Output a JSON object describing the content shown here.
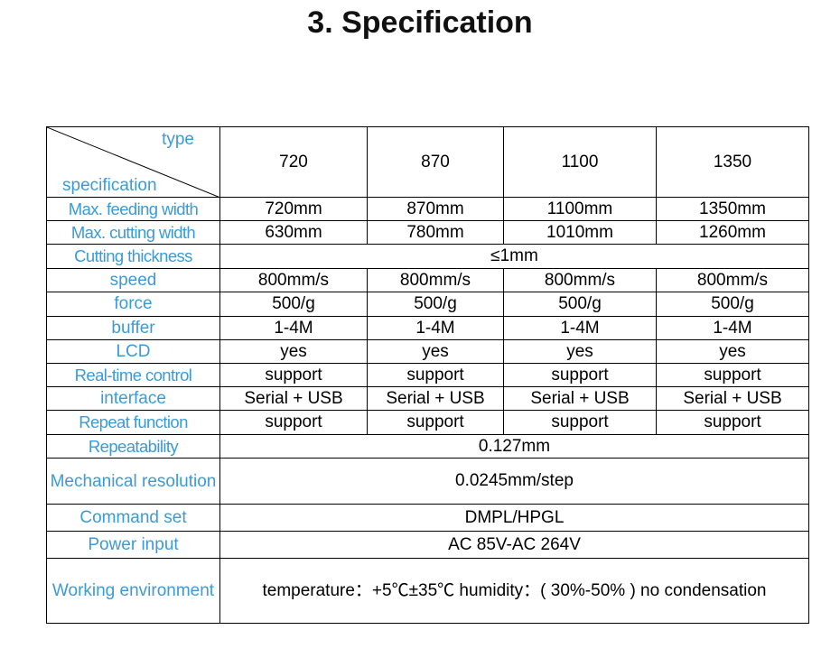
{
  "title": "3. Specification",
  "header": {
    "type_label": "type",
    "spec_label": "specification",
    "models": [
      "720",
      "870",
      "1100",
      "1350"
    ]
  },
  "rows": {
    "feeding": {
      "label": "Max. feeding width",
      "values": [
        "720mm",
        "870mm",
        "1100mm",
        "1350mm"
      ]
    },
    "cutting": {
      "label": "Max. cutting width",
      "values": [
        "630mm",
        "780mm",
        "1010mm",
        "1260mm"
      ]
    },
    "thickness": {
      "label": "Cutting thickness",
      "value": "≤1mm"
    },
    "speed": {
      "label": "speed",
      "values": [
        "800mm/s",
        "800mm/s",
        "800mm/s",
        "800mm/s"
      ]
    },
    "force": {
      "label": "force",
      "values": [
        "500/g",
        "500/g",
        "500/g",
        "500/g"
      ]
    },
    "buffer": {
      "label": "buffer",
      "values": [
        "1-4M",
        "1-4M",
        "1-4M",
        "1-4M"
      ]
    },
    "lcd": {
      "label": "LCD",
      "values": [
        "yes",
        "yes",
        "yes",
        "yes"
      ]
    },
    "realtime": {
      "label": "Real-time control",
      "values": [
        "support",
        "support",
        "support",
        "support"
      ]
    },
    "interface": {
      "label": "interface",
      "values": [
        "Serial + USB",
        "Serial + USB",
        "Serial + USB",
        "Serial + USB"
      ]
    },
    "repeat": {
      "label": "Repeat function",
      "values": [
        "support",
        "support",
        "support",
        "support"
      ]
    },
    "repeatability": {
      "label": "Repeatability",
      "value": "0.127mm"
    },
    "resolution": {
      "label": "Mechanical resolution",
      "value": "0.0245mm/step"
    },
    "command": {
      "label": "Command set",
      "value": "DMPL/HPGL"
    },
    "power": {
      "label": "Power input",
      "value": "AC 85V-AC 264V"
    },
    "environment": {
      "label": "Working environment",
      "value": "temperature：+5℃±35℃ humidity：( 30%-50% ) no condensation"
    }
  }
}
